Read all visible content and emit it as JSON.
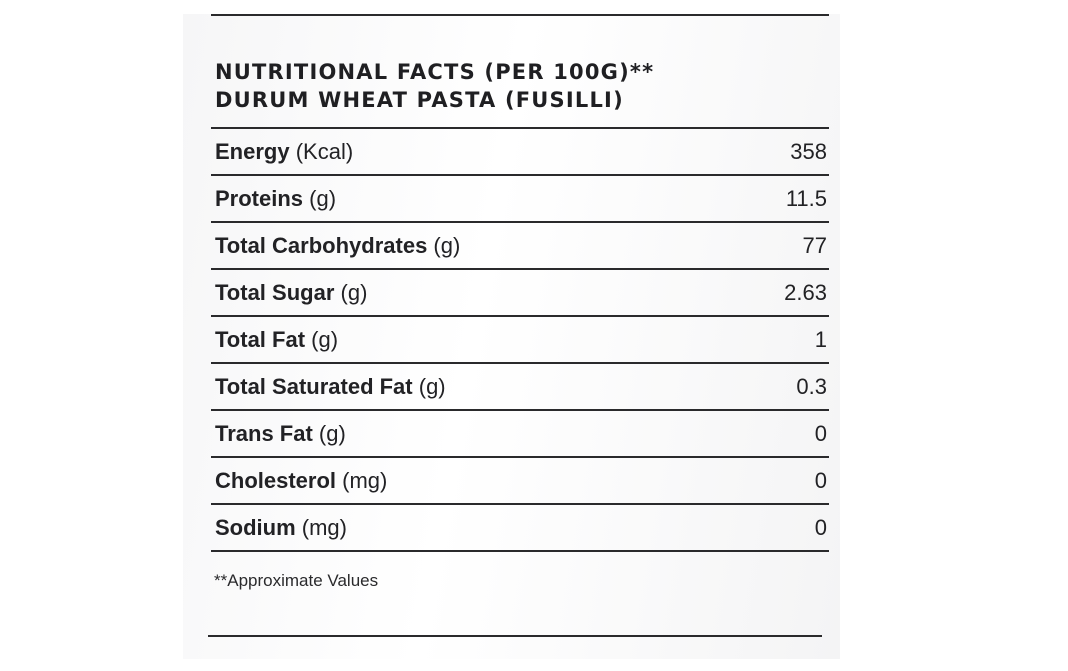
{
  "label": {
    "title_line1": "NUTRITIONAL FACTS (PER 100G)**",
    "title_line2": "DURUM WHEAT PASTA (FUSILLI)",
    "rows": [
      {
        "name": "Energy",
        "unit": " (Kcal)",
        "value": "358"
      },
      {
        "name": "Proteins",
        "unit": " (g)",
        "value": "11.5"
      },
      {
        "name": "Total Carbohydrates",
        "unit": " (g)",
        "value": "77"
      },
      {
        "name": "Total Sugar",
        "unit": " (g)",
        "value": "2.63"
      },
      {
        "name": "Total Fat",
        "unit": " (g)",
        "value": "1"
      },
      {
        "name": "Total Saturated Fat",
        "unit": " (g)",
        "value": "0.3"
      },
      {
        "name": "Trans Fat",
        "unit": " (g)",
        "value": "0"
      },
      {
        "name": "Cholesterol",
        "unit": " (mg)",
        "value": "0"
      },
      {
        "name": "Sodium",
        "unit": " (mg)",
        "value": "0"
      }
    ],
    "footnote": "**Approximate Values"
  }
}
